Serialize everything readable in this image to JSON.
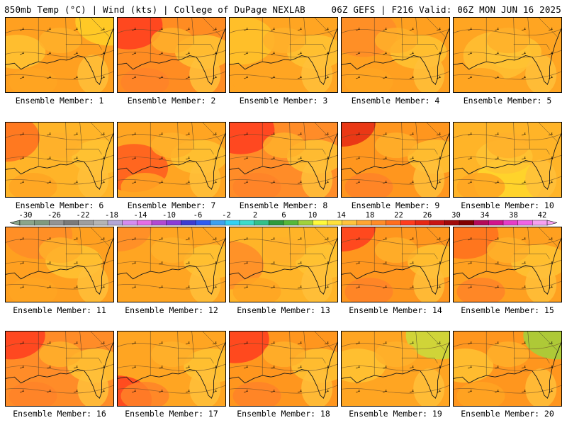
{
  "header": {
    "left": "850mb Temp (°C) | Wind (kts) | College of DuPage NEXLAB",
    "right": "06Z GEFS | F216 Valid: 06Z MON JUN 16 2025"
  },
  "colorbar": {
    "ticks": [
      "-30",
      "-26",
      "-22",
      "-18",
      "-14",
      "-10",
      "-6",
      "-2",
      "2",
      "6",
      "10",
      "14",
      "18",
      "22",
      "26",
      "30",
      "34",
      "38",
      "42"
    ],
    "colors": [
      "#8aa58a",
      "#7f9a7f",
      "#939393",
      "#7a7a7a",
      "#9e9e9e",
      "#b4b4b4",
      "#b3a6d8",
      "#d58cf0",
      "#e56ee6",
      "#b14ad2",
      "#8a3cd8",
      "#3c3cd0",
      "#2d5cf0",
      "#3ca0f0",
      "#33d1f2",
      "#3cdcc8",
      "#32c08a",
      "#2e9a3c",
      "#55b83a",
      "#a0d23c",
      "#fffa3c",
      "#ffe13c",
      "#ffc33c",
      "#ffa532",
      "#ff8c28",
      "#ff6e1e",
      "#ff3c1e",
      "#e62814",
      "#c81414",
      "#a00a0a",
      "#800000",
      "#b40a5a",
      "#d2148c",
      "#e63cc8",
      "#f064e6",
      "#f6a0f0"
    ]
  },
  "members": [
    {
      "label": "Ensemble Member: 1",
      "tone": "#ffa020",
      "hot": [
        0.95,
        0.05,
        "#ffd028"
      ],
      "warm": 0.4
    },
    {
      "label": "Ensemble Member: 2",
      "tone": "#ff8c22",
      "hot": [
        0.1,
        0.1,
        "#ff3c1e"
      ],
      "warm": 0.8
    },
    {
      "label": "Ensemble Member: 3",
      "tone": "#ffa522",
      "hot": [
        0.1,
        0.3,
        "#ffc32a"
      ],
      "warm": 0.3
    },
    {
      "label": "Ensemble Member: 4",
      "tone": "#ffa020",
      "hot": [
        0.2,
        0.2,
        "#ff8c28"
      ],
      "warm": 0.5
    },
    {
      "label": "Ensemble Member: 5",
      "tone": "#ffa522",
      "hot": [
        0.4,
        0.5,
        "#ffc032"
      ],
      "warm": 0.3
    },
    {
      "label": "Ensemble Member: 6",
      "tone": "#ffb428",
      "hot": [
        0.0,
        0.2,
        "#ff6e1e"
      ],
      "warm": 0.3
    },
    {
      "label": "Ensemble Member: 7",
      "tone": "#ffa522",
      "hot": [
        0.15,
        0.6,
        "#ff5a1e"
      ],
      "warm": 0.5
    },
    {
      "label": "Ensemble Member: 8",
      "tone": "#ff8c28",
      "hot": [
        0.1,
        0.1,
        "#ff3c1e"
      ],
      "warm": 0.8
    },
    {
      "label": "Ensemble Member: 9",
      "tone": "#ff961e",
      "hot": [
        0.0,
        0.0,
        "#e62814"
      ],
      "warm": 0.7
    },
    {
      "label": "Ensemble Member: 10",
      "tone": "#ffb428",
      "hot": [
        0.5,
        0.8,
        "#ffd82c"
      ],
      "warm": 0.2
    },
    {
      "label": "Ensemble Member: 11",
      "tone": "#ffa020",
      "hot": [
        0.3,
        0.1,
        "#ff8c28"
      ],
      "warm": 0.4
    },
    {
      "label": "Ensemble Member: 12",
      "tone": "#ffa522",
      "hot": [
        0.0,
        0.0,
        "#ff8c28"
      ],
      "warm": 0.4
    },
    {
      "label": "Ensemble Member: 13",
      "tone": "#ffb428",
      "hot": [
        0.0,
        0.5,
        "#ff8c28"
      ],
      "warm": 0.3
    },
    {
      "label": "Ensemble Member: 14",
      "tone": "#ff961e",
      "hot": [
        0.0,
        0.0,
        "#ff3c1e"
      ],
      "warm": 0.8
    },
    {
      "label": "Ensemble Member: 15",
      "tone": "#ffa020",
      "hot": [
        0.1,
        0.1,
        "#ff6e1e"
      ],
      "warm": 0.6
    },
    {
      "label": "Ensemble Member: 16",
      "tone": "#ff8c28",
      "hot": [
        0.05,
        0.05,
        "#ff3c1e"
      ],
      "warm": 0.6
    },
    {
      "label": "Ensemble Member: 17",
      "tone": "#ffa522",
      "hot": [
        0.0,
        0.9,
        "#ff3c1e"
      ],
      "warm": 0.6
    },
    {
      "label": "Ensemble Member: 18",
      "tone": "#ff961e",
      "hot": [
        0.05,
        0.1,
        "#ff3c1e"
      ],
      "warm": 0.7
    },
    {
      "label": "Ensemble Member: 19",
      "tone": "#ffa522",
      "hot": [
        0.9,
        0.05,
        "#c8dc3c"
      ],
      "warm": 0.3
    },
    {
      "label": "Ensemble Member: 20",
      "tone": "#ff961e",
      "hot": [
        0.95,
        0.05,
        "#a0d23c"
      ],
      "warm": 0.5
    }
  ]
}
